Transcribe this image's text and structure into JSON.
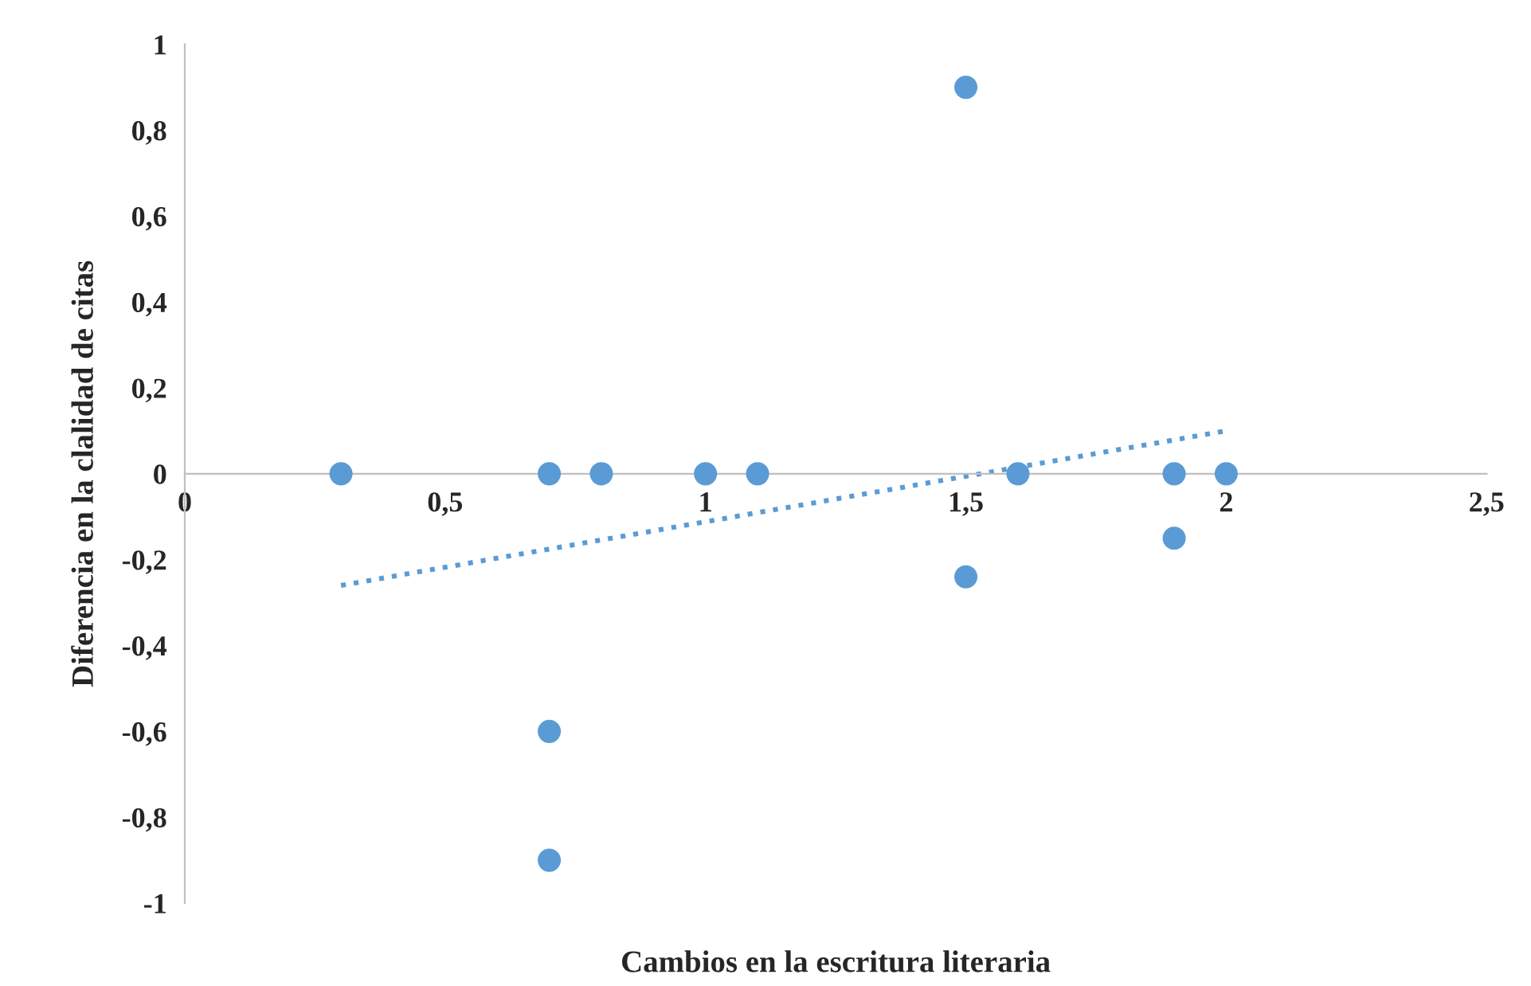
{
  "chart_data": {
    "type": "scatter",
    "xlabel": "Cambios en la escritura literaria",
    "ylabel": "Diferencia en la clalidad de citas",
    "xlim": [
      0,
      2.5
    ],
    "xticks": [
      {
        "value": 0,
        "label": "0"
      },
      {
        "value": 0.5,
        "label": "0,5"
      },
      {
        "value": 1,
        "label": "1"
      },
      {
        "value": 1.5,
        "label": "1,5"
      },
      {
        "value": 2,
        "label": "2"
      },
      {
        "value": 2.5,
        "label": "2,5"
      }
    ],
    "ylim": [
      -1,
      1
    ],
    "yticks": [
      {
        "value": -1,
        "label": "-1"
      },
      {
        "value": -0.8,
        "label": "-0,8"
      },
      {
        "value": -0.6,
        "label": "-0,6"
      },
      {
        "value": -0.4,
        "label": "-0,4"
      },
      {
        "value": -0.2,
        "label": "-0,2"
      },
      {
        "value": 0,
        "label": "0"
      },
      {
        "value": 0.2,
        "label": "0,2"
      },
      {
        "value": 0.4,
        "label": "0,4"
      },
      {
        "value": 0.6,
        "label": "0,6"
      },
      {
        "value": 0.8,
        "label": "0,8"
      },
      {
        "value": 1,
        "label": "1"
      }
    ],
    "grid": false,
    "legend": false,
    "marker": "circle",
    "series": [
      {
        "color": "#5b9bd5",
        "x": [
          0.3,
          0.7,
          0.8,
          1.0,
          1.1,
          1.6,
          1.9,
          2.0,
          1.5,
          1.5,
          1.9,
          0.7,
          0.7
        ],
        "values": [
          0,
          0,
          0,
          0,
          0,
          0,
          0,
          0,
          0.9,
          -0.24,
          -0.15,
          -0.6,
          -0.9
        ]
      },
      {
        "type": "line",
        "line_style": "dotted",
        "marker": "none",
        "color": "#5b9bd5",
        "x": [
          0.3,
          2.0
        ],
        "values": [
          -0.26,
          0.1
        ]
      }
    ]
  }
}
